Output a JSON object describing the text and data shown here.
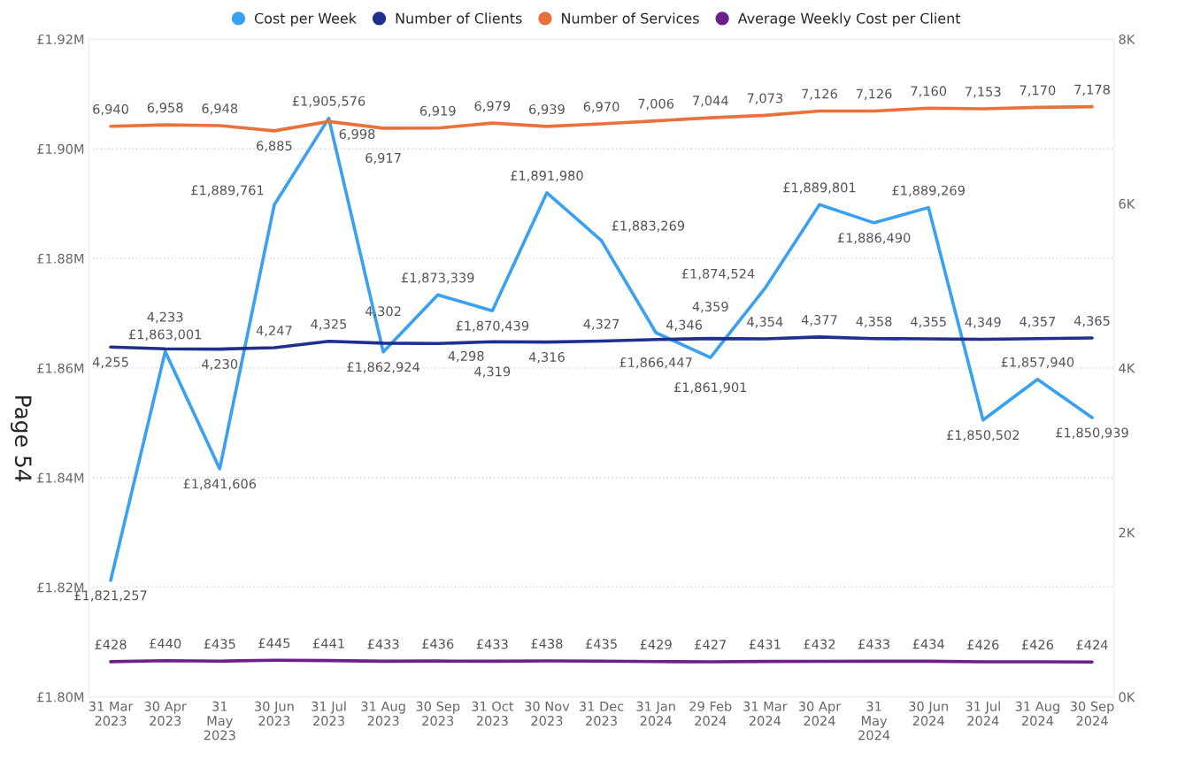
{
  "chart_data": {
    "type": "line",
    "categories": [
      "31 Mar\n2023",
      "30 Apr\n2023",
      "31\nMay\n2023",
      "30 Jun\n2023",
      "31 Jul\n2023",
      "31 Aug\n2023",
      "30 Sep\n2023",
      "31 Oct\n2023",
      "30 Nov\n2023",
      "31 Dec\n2023",
      "31 Jan\n2024",
      "29 Feb\n2024",
      "31 Mar\n2024",
      "30 Apr\n2024",
      "31\nMay\n2024",
      "30 Jun\n2024",
      "31 Jul\n2024",
      "31 Aug\n2024",
      "30 Sep\n2024"
    ],
    "series": [
      {
        "name": "Cost per Week",
        "color": "#3aa0f0",
        "values": [
          1821257,
          1863001,
          1841606,
          1889761,
          1905576,
          1862924,
          1873339,
          1870439,
          1891980,
          1883269,
          1866447,
          1861901,
          1874524,
          1889801,
          1886490,
          1889269,
          1850502,
          1857940,
          1850939
        ],
        "value_labels": [
          "£1,821,257",
          "£1,863,001",
          "£1,841,606",
          "£1,889,761",
          "£1,905,576",
          "£1,862,924",
          "£1,873,339",
          "£1,870,439",
          "£1,891,980",
          "£1,883,269",
          "£1,866,447",
          "£1,861,901",
          "£1,874,524",
          "£1,889,801",
          "£1,886,490",
          "£1,889,269",
          "£1,850,502",
          "£1,857,940",
          "£1,850,939"
        ]
      },
      {
        "name": "Number of Clients",
        "color": "#1f2f8f",
        "axis": "y2",
        "values": [
          4255,
          4233,
          4230,
          4247,
          4325,
          4302,
          4298,
          4319,
          4316,
          4327,
          4346,
          4359,
          4354,
          4377,
          4358,
          4355,
          4349,
          4357,
          4365
        ],
        "value_labels": [
          "4,255",
          "4,233",
          "4,230",
          "4,247",
          "4,325",
          "4,302",
          "4,298",
          "4,319",
          "4,316",
          "4,327",
          "4,346",
          "4,359",
          "4,354",
          "4,377",
          "4,358",
          "4,355",
          "4,349",
          "4,357",
          "4,365"
        ]
      },
      {
        "name": "Number of Services",
        "color": "#e8713c",
        "axis": "y2",
        "values": [
          6940,
          6958,
          6948,
          6885,
          6998,
          6917,
          6919,
          6979,
          6939,
          6970,
          7006,
          7044,
          7073,
          7126,
          7126,
          7160,
          7153,
          7170,
          7178
        ],
        "value_labels": [
          "6,940",
          "6,958",
          "6,948",
          "6,885",
          "6,998",
          "6,917",
          "6,919",
          "6,979",
          "6,939",
          "6,970",
          "7,006",
          "7,044",
          "7,073",
          "7,126",
          "7,126",
          "7,160",
          "7,153",
          "7,170",
          "7,178"
        ]
      },
      {
        "name": "Average Weekly Cost per Client",
        "color": "#6b1f8a",
        "axis": "y2",
        "values": [
          428,
          440,
          435,
          445,
          441,
          433,
          436,
          433,
          438,
          435,
          429,
          427,
          431,
          432,
          433,
          434,
          426,
          426,
          424
        ],
        "value_labels": [
          "£428",
          "£440",
          "£435",
          "£445",
          "£441",
          "£433",
          "£436",
          "£433",
          "£438",
          "£435",
          "£429",
          "£427",
          "£431",
          "£432",
          "£433",
          "£434",
          "£426",
          "£426",
          "£424"
        ]
      }
    ],
    "ylim": [
      1800000,
      1920000
    ],
    "yticks": [
      {
        "value": 1800000,
        "label": "£1.80M"
      },
      {
        "value": 1820000,
        "label": "£1.82M"
      },
      {
        "value": 1840000,
        "label": "£1.84M"
      },
      {
        "value": 1860000,
        "label": "£1.86M"
      },
      {
        "value": 1880000,
        "label": "£1.88M"
      },
      {
        "value": 1900000,
        "label": "£1.90M"
      },
      {
        "value": 1920000,
        "label": "£1.92M"
      }
    ],
    "y2lim": [
      0,
      8000
    ],
    "y2ticks": [
      {
        "value": 0,
        "label": "0K"
      },
      {
        "value": 2000,
        "label": "2K"
      },
      {
        "value": 4000,
        "label": "4K"
      },
      {
        "value": 6000,
        "label": "6K"
      },
      {
        "value": 8000,
        "label": "8K"
      }
    ],
    "grid": "y",
    "legend": "top",
    "marker": "none",
    "line_style": "solid",
    "annotations": [
      "Page 54"
    ]
  }
}
